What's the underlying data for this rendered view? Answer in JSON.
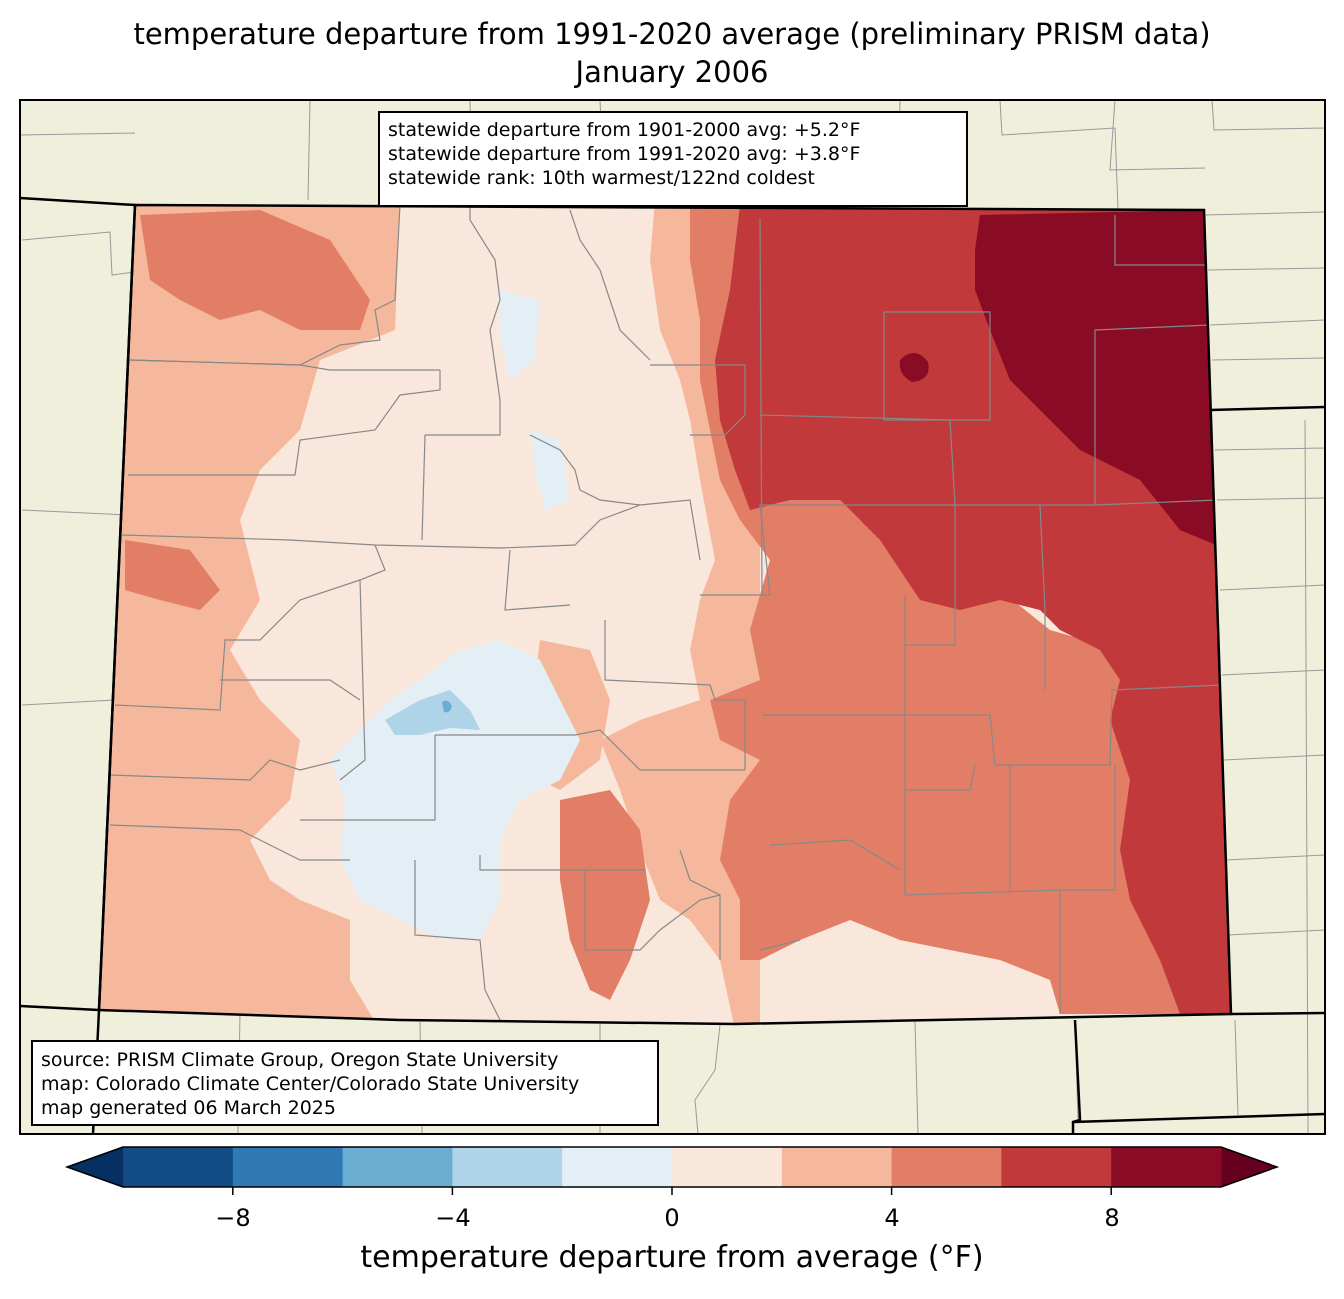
{
  "title": {
    "line1": "temperature departure from 1991-2020 average (preliminary PRISM data)",
    "line2": "January 2006"
  },
  "stats": {
    "line1": "statewide departure from 1901-2000 avg: +5.2°F",
    "line2": "statewide departure from 1991-2020 avg: +3.8°F",
    "line3": "statewide rank: 10th warmest/122nd coldest"
  },
  "source": {
    "line1": "source: PRISM Climate Group, Oregon State University",
    "line2": "map: Colorado Climate Center/Colorado State University",
    "line3": "map generated 06 March 2025"
  },
  "colorbar": {
    "label": "temperature departure from average (°F)",
    "ticks": [
      "−8",
      "−4",
      "0",
      "4",
      "8"
    ],
    "bins": [
      -10,
      -8,
      -6,
      -4,
      -2,
      0,
      2,
      4,
      6,
      8,
      10
    ],
    "colors": [
      "#134b87",
      "#2f79b5",
      "#6bacd1",
      "#b0d4e7",
      "#e4eef5",
      "#fae7dc",
      "#f6b89c",
      "#e27e66",
      "#c1393a",
      "#8a0b24"
    ],
    "under_color": "#053061",
    "over_color": "#67001f"
  },
  "map": {
    "land_color": "#f0efdc",
    "region": "Colorado"
  }
}
